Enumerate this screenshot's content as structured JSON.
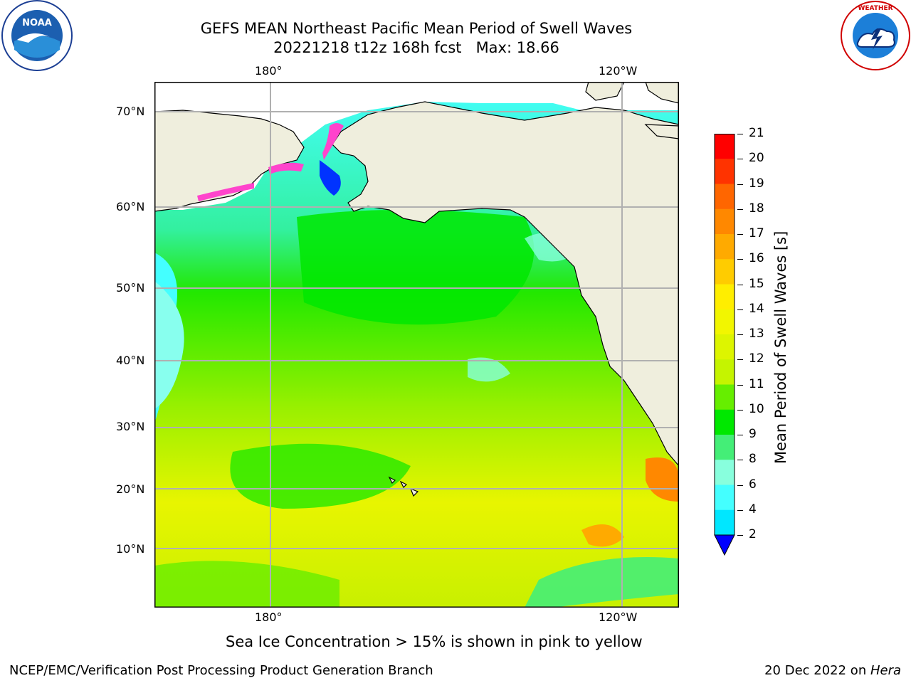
{
  "title_line1": "GEFS MEAN Northeast Pacific Mean Period of Swell Waves",
  "title_line2": "20221218 t12z 168h fcst   Max: 18.66",
  "logos": {
    "left": {
      "name": "noaa-logo",
      "text": "NOAA"
    },
    "right": {
      "name": "nws-logo",
      "text": "NATIONAL WEATHER SERVICE"
    }
  },
  "map": {
    "top_lon_labels": [
      "180°",
      "120°W"
    ],
    "bottom_lon_labels": [
      "180°",
      "120°W"
    ],
    "lat_labels": [
      "70°N",
      "60°N",
      "50°N",
      "40°N",
      "30°N",
      "20°N",
      "10°N"
    ],
    "colors": {
      "land": "#efeedd",
      "coast": "#000000",
      "grid": "#b0b0b0"
    }
  },
  "colorbar": {
    "title": "Mean Period of Swell Waves [s]",
    "levels": [
      "21",
      "20",
      "19",
      "18",
      "17",
      "16",
      "15",
      "14",
      "13",
      "12",
      "11",
      "10",
      "9",
      "8",
      "6",
      "4",
      "2"
    ],
    "colors": [
      "#ff0000",
      "#ff3300",
      "#ff6600",
      "#ff8800",
      "#ffaa00",
      "#ffcc00",
      "#ffee00",
      "#f2f600",
      "#ddf500",
      "#c5f400",
      "#66ee00",
      "#00e800",
      "#44ee77",
      "#88ffdd",
      "#44ffff",
      "#00e7ff",
      "#0077ff"
    ],
    "extend_color": "#0000ff"
  },
  "caption": "Sea Ice Concentration > 15% is shown in pink to yellow",
  "footer_left": "NCEP/EMC/Verification Post Processing Product Generation Branch",
  "footer_right_prefix": "20 Dec 2022 on ",
  "footer_right_host": "Hera"
}
